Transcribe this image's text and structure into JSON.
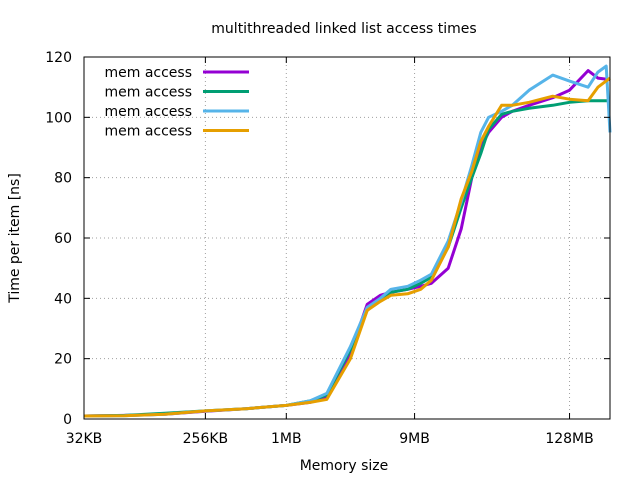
{
  "chart_data": {
    "type": "line",
    "title": "multithreaded linked list access times",
    "xlabel": "Memory size",
    "ylabel": "Time per item [ns]",
    "x_scale": "log2",
    "x_unit": "bytes",
    "x_ticks": [
      {
        "value": 32768,
        "label": "32KB"
      },
      {
        "value": 262144,
        "label": "256KB"
      },
      {
        "value": 1048576,
        "label": "1MB"
      },
      {
        "value": 9437184,
        "label": "9MB"
      },
      {
        "value": 134217728,
        "label": "128MB"
      }
    ],
    "xlim": [
      32768,
      268435456
    ],
    "ylim": [
      0,
      120
    ],
    "y_ticks": [
      0,
      20,
      40,
      60,
      80,
      100,
      120
    ],
    "grid": true,
    "legend_position": "top-left",
    "series": [
      {
        "name": "mem access",
        "color": "#9400d3",
        "points": [
          [
            32768,
            1.0
          ],
          [
            65536,
            1.2
          ],
          [
            131072,
            1.6
          ],
          [
            262144,
            2.6
          ],
          [
            524288,
            3.4
          ],
          [
            1048576,
            4.5
          ],
          [
            1572864,
            5.5
          ],
          [
            2097152,
            7.0
          ],
          [
            3145728,
            22.0
          ],
          [
            4194304,
            38.0
          ],
          [
            5242880,
            41.0
          ],
          [
            6291456,
            42.0
          ],
          [
            8388608,
            43.0
          ],
          [
            10485760,
            44.0
          ],
          [
            12582912,
            45.0
          ],
          [
            16777216,
            50.0
          ],
          [
            20971520,
            63.0
          ],
          [
            25165824,
            80.0
          ],
          [
            29360128,
            90.0
          ],
          [
            33554432,
            95.0
          ],
          [
            41943040,
            100.0
          ],
          [
            50331648,
            102.0
          ],
          [
            67108864,
            104.0
          ],
          [
            100663296,
            106.5
          ],
          [
            134217728,
            109.0
          ],
          [
            184549376,
            115.5
          ],
          [
            218103808,
            113.0
          ],
          [
            268435456,
            112.5
          ]
        ]
      },
      {
        "name": "mem access",
        "color": "#009e73",
        "points": [
          [
            32768,
            1.0
          ],
          [
            65536,
            1.2
          ],
          [
            131072,
            1.9
          ],
          [
            262144,
            2.7
          ],
          [
            524288,
            3.4
          ],
          [
            1048576,
            4.5
          ],
          [
            1572864,
            6.0
          ],
          [
            2097152,
            8.0
          ],
          [
            3145728,
            23.0
          ],
          [
            4194304,
            36.0
          ],
          [
            5242880,
            40.0
          ],
          [
            6291456,
            42.0
          ],
          [
            8388608,
            43.0
          ],
          [
            10485760,
            45.0
          ],
          [
            12582912,
            47.0
          ],
          [
            16777216,
            57.0
          ],
          [
            20971520,
            70.0
          ],
          [
            25165824,
            80.0
          ],
          [
            29360128,
            88.0
          ],
          [
            33554432,
            96.0
          ],
          [
            41943040,
            101.0
          ],
          [
            50331648,
            102.0
          ],
          [
            67108864,
            103.0
          ],
          [
            100663296,
            104.0
          ],
          [
            134217728,
            105.0
          ],
          [
            184549376,
            105.5
          ],
          [
            218103808,
            105.5
          ],
          [
            268435456,
            105.5
          ]
        ]
      },
      {
        "name": "mem access",
        "color": "#56b4e9",
        "points": [
          [
            32768,
            1.0
          ],
          [
            65536,
            1.1
          ],
          [
            131072,
            1.6
          ],
          [
            262144,
            2.7
          ],
          [
            524288,
            3.4
          ],
          [
            1048576,
            4.5
          ],
          [
            1572864,
            6.0
          ],
          [
            2097152,
            8.5
          ],
          [
            3145728,
            24.0
          ],
          [
            4194304,
            37.0
          ],
          [
            5242880,
            40.0
          ],
          [
            6291456,
            43.0
          ],
          [
            8388608,
            44.0
          ],
          [
            10485760,
            46.0
          ],
          [
            12582912,
            48.0
          ],
          [
            16777216,
            59.0
          ],
          [
            20971520,
            72.0
          ],
          [
            25165824,
            84.0
          ],
          [
            29360128,
            95.0
          ],
          [
            33554432,
            100.0
          ],
          [
            41943040,
            102.0
          ],
          [
            50331648,
            104.0
          ],
          [
            67108864,
            109.0
          ],
          [
            100663296,
            114.0
          ],
          [
            134217728,
            112.0
          ],
          [
            184549376,
            110.0
          ],
          [
            218103808,
            115.0
          ],
          [
            251658240,
            117.0
          ],
          [
            268435456,
            95.0
          ]
        ]
      },
      {
        "name": "mem access",
        "color": "#e69f00",
        "points": [
          [
            32768,
            1.0
          ],
          [
            65536,
            1.1
          ],
          [
            131072,
            1.6
          ],
          [
            262144,
            2.7
          ],
          [
            524288,
            3.4
          ],
          [
            1048576,
            4.5
          ],
          [
            1572864,
            5.5
          ],
          [
            2097152,
            6.5
          ],
          [
            3145728,
            20.0
          ],
          [
            4194304,
            36.0
          ],
          [
            5242880,
            39.0
          ],
          [
            6291456,
            41.0
          ],
          [
            8388608,
            41.5
          ],
          [
            10485760,
            43.0
          ],
          [
            12582912,
            46.0
          ],
          [
            16777216,
            57.0
          ],
          [
            20971520,
            73.0
          ],
          [
            25165824,
            82.0
          ],
          [
            29360128,
            92.0
          ],
          [
            33554432,
            97.0
          ],
          [
            41943040,
            104.0
          ],
          [
            50331648,
            104.0
          ],
          [
            67108864,
            105.0
          ],
          [
            100663296,
            107.0
          ],
          [
            134217728,
            106.0
          ],
          [
            184549376,
            105.5
          ],
          [
            218103808,
            110.0
          ],
          [
            268435456,
            113.0
          ]
        ]
      }
    ]
  }
}
